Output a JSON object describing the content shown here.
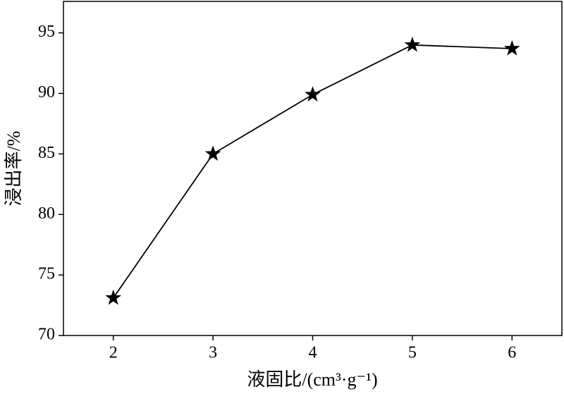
{
  "chart_data": {
    "type": "line",
    "x_label": "液固比/(cm³·g⁻¹)",
    "y_label": "浸出率/%",
    "x": [
      2,
      3,
      4,
      5,
      6
    ],
    "series": [
      {
        "values": [
          73.1,
          85.0,
          89.9,
          94.0,
          93.7
        ],
        "color": "#000000",
        "marker": "star"
      }
    ],
    "xlim": [
      1.5,
      6.5
    ],
    "xticks": [
      2,
      3,
      4,
      5,
      6
    ],
    "ylim": [
      70,
      97.6
    ],
    "yticks": [
      70,
      75,
      80,
      85,
      90,
      95
    ],
    "grid": false
  }
}
